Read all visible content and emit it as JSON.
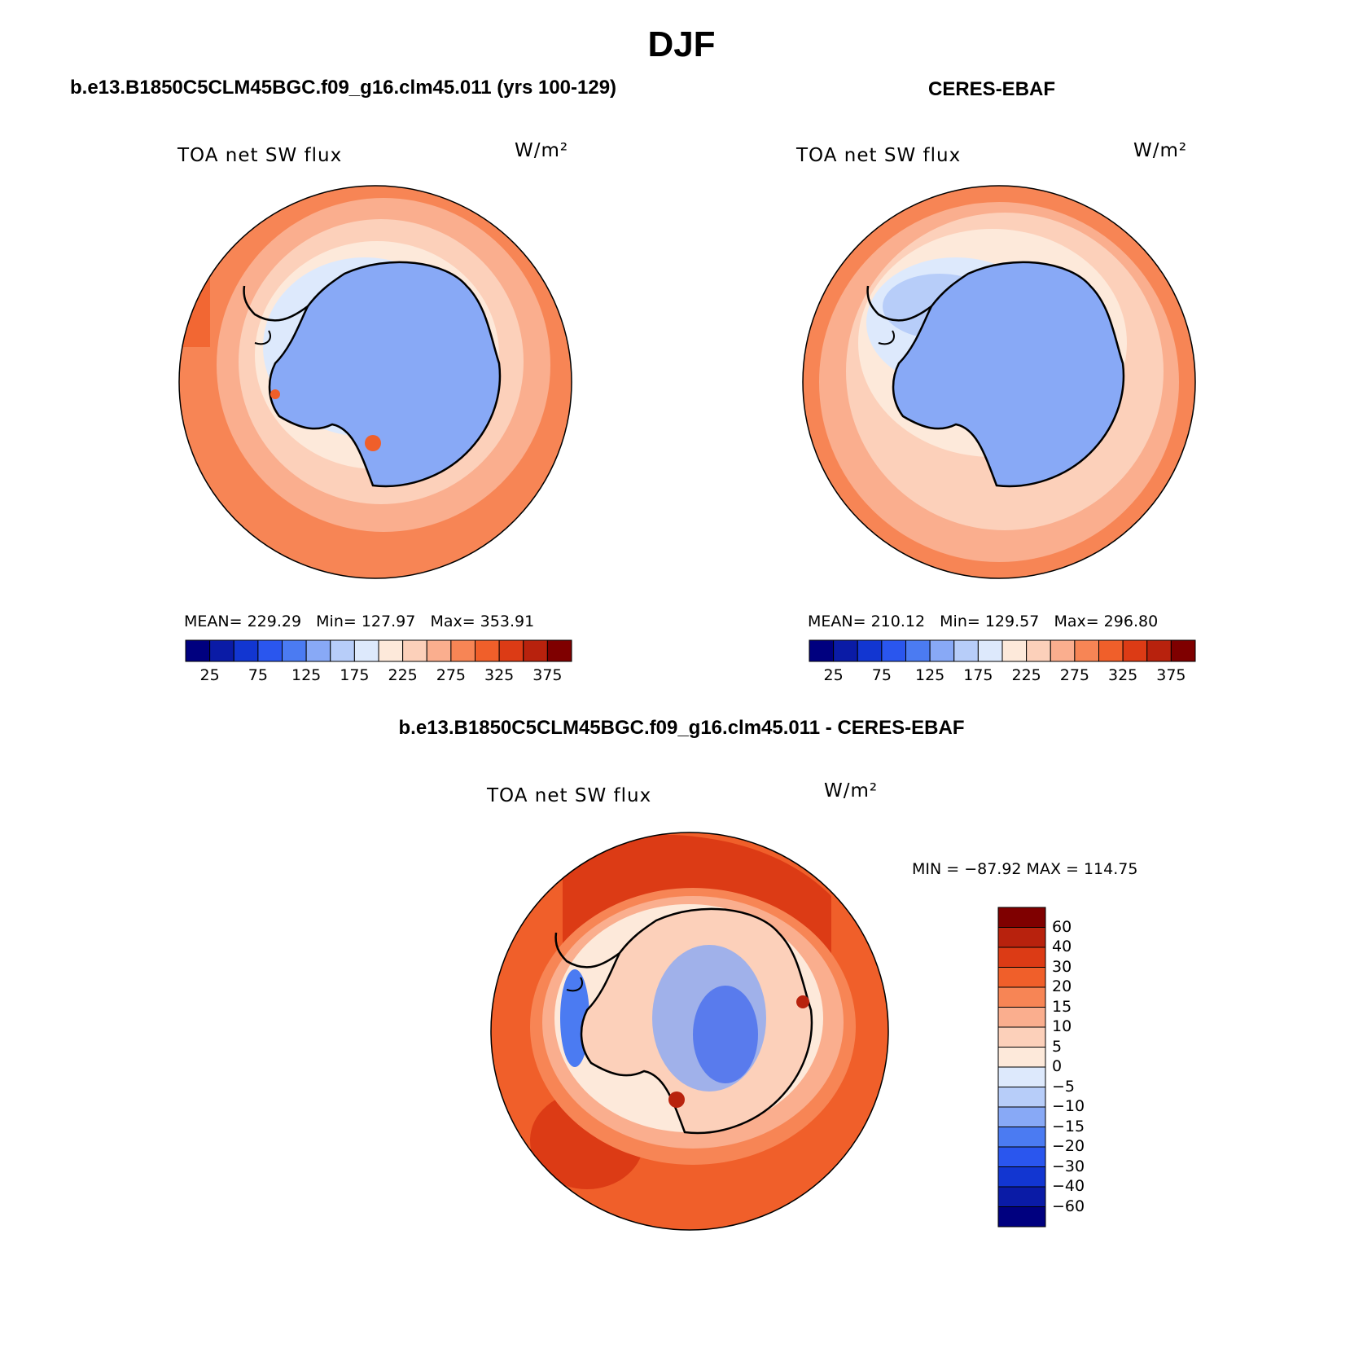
{
  "main_title": "DJF",
  "panels": {
    "left": {
      "title": "b.e13.B1850C5CLM45BGC.f09_g16.clm45.011 (yrs 100-129)",
      "label": "TOA net SW flux",
      "units": "W/m²",
      "stats": "MEAN= 229.29   Min= 127.97   Max= 353.91"
    },
    "right": {
      "title": "CERES-EBAF",
      "label": "TOA net SW flux",
      "units": "W/m²",
      "stats": "MEAN= 210.12   Min= 129.57   Max= 296.80"
    },
    "diff": {
      "title": "b.e13.B1850C5CLM45BGC.f09_g16.clm45.011 - CERES-EBAF",
      "label": "TOA net SW flux",
      "units": "W/m²",
      "stats": "MIN = −87.92 MAX = 114.75"
    }
  },
  "colorbar_abs": {
    "colors": [
      "#00007f",
      "#0a1ba6",
      "#1236d1",
      "#2a56ee",
      "#4b7bf2",
      "#88a9f6",
      "#b7cdf9",
      "#dde9fc",
      "#fde9da",
      "#fcd0ba",
      "#faae8e",
      "#f78555",
      "#f05f2a",
      "#dc3b15",
      "#b8220d",
      "#7f0000"
    ],
    "ticks": [
      "25",
      "75",
      "125",
      "175",
      "225",
      "275",
      "325",
      "375"
    ]
  },
  "colorbar_diff": {
    "colors": [
      "#7f0000",
      "#b8220d",
      "#dc3b15",
      "#f05f2a",
      "#f78555",
      "#faae8e",
      "#fcd0ba",
      "#fde9da",
      "#dde9fc",
      "#b7cdf9",
      "#88a9f6",
      "#4b7bf2",
      "#2a56ee",
      "#1236d1",
      "#0a1ba6",
      "#00007f"
    ],
    "ticks": [
      "60",
      "40",
      "30",
      "20",
      "15",
      "10",
      "5",
      "0",
      "−5",
      "−10",
      "−15",
      "−20",
      "−30",
      "−40",
      "−60"
    ]
  }
}
